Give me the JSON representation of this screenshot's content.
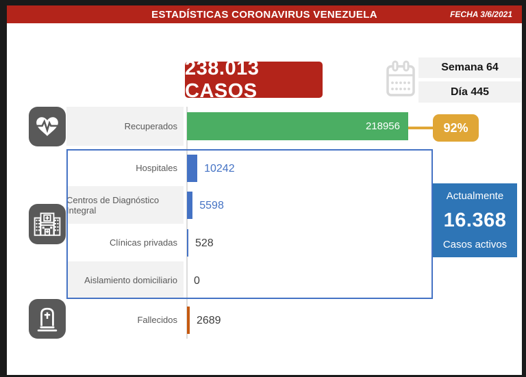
{
  "banner": {
    "title": "ESTADÍSTICAS CORONAVIRUS VENEZUELA",
    "date": "FECHA 3/6/2021"
  },
  "totals": {
    "cases_label": "238.013 CASOS",
    "week_label": "Semana 64",
    "day_label": "Día 445"
  },
  "recovered": {
    "percent_label": "92%"
  },
  "active": {
    "heading": "Actualmente",
    "value": "16.368",
    "subheading": "Casos activos"
  },
  "icons": {
    "calendar": "calendar-icon",
    "heart": "heart-pulse-icon",
    "hospital": "hospital-icon",
    "tombstone": "tombstone-icon"
  },
  "palette": {
    "banner_red": "#b3241a",
    "recovered_green": "#4bae63",
    "percent_gold": "#e0a636",
    "bar_blue": "#4472c4",
    "active_blue": "#2e75b6",
    "band_gray": "#f2f2f2",
    "icon_gray": "#595959",
    "deaths_orange": "#c55a11"
  },
  "chart_data": {
    "type": "bar",
    "orientation": "horizontal",
    "categories": [
      "Recuperados",
      "Hospitales",
      "Centros de Diagnóstico Integral",
      "Clínicas privadas",
      "Aislamiento domiciliario",
      "Fallecidos"
    ],
    "values": [
      218956,
      10242,
      5598,
      528,
      0,
      2689
    ],
    "colors": [
      "#4bae63",
      "#4472c4",
      "#4472c4",
      "#4472c4",
      "#4472c4",
      "#c55a11"
    ],
    "value_in_bar": [
      true,
      false,
      false,
      false,
      false,
      false
    ],
    "recovered_percent": 92,
    "xmax": 218956,
    "grid": false,
    "legend": false
  }
}
